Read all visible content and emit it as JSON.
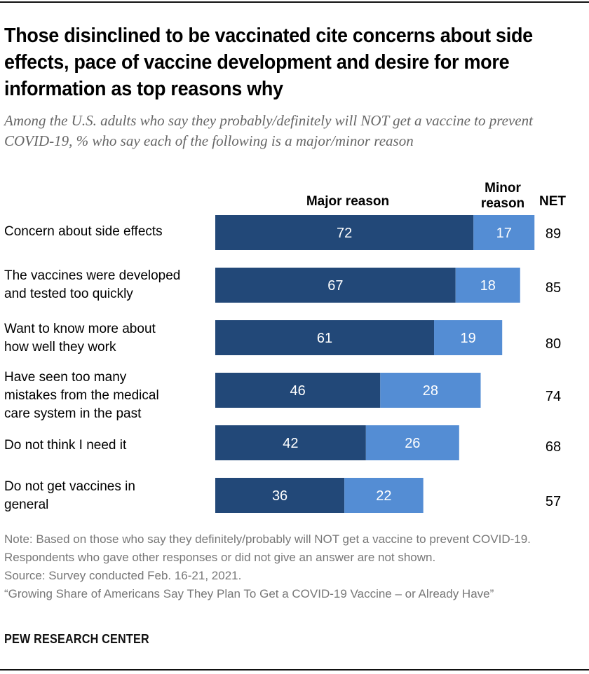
{
  "title": "Those disinclined to be vaccinated cite concerns about side effects, pace of vaccine development and desire for more information as top reasons why",
  "subtitle": "Among the U.S. adults who say they probably/definitely will NOT get a vaccine to prevent COVID-19, % who say each of the following is a major/minor reason",
  "column_headers": {
    "major": "Major reason",
    "minor_line1": "Minor",
    "minor_line2": "reason",
    "net": "NET"
  },
  "chart_data": {
    "type": "bar",
    "orientation": "horizontal",
    "stacked": true,
    "title": "Those disinclined to be vaccinated cite concerns about side effects, pace of vaccine development and desire for more information as top reasons why",
    "subtitle": "Among the U.S. adults who say they probably/definitely will NOT get a vaccine to prevent COVID-19, % who say each of the following is a major/minor reason",
    "categories": [
      "Concern about side effects",
      "The vaccines were developed and tested too quickly",
      "Want to know more about how well they work",
      "Have seen too many mistakes from the medical care system in the past",
      "Do not think I need it",
      "Do not get vaccines in general"
    ],
    "category_lines": [
      [
        "Concern about side effects"
      ],
      [
        "The vaccines were developed",
        "and tested too quickly"
      ],
      [
        "Want to know more about",
        "how well they work"
      ],
      [
        "Have seen too many",
        "mistakes from the medical",
        "care system in the past"
      ],
      [
        "Do not think I need it"
      ],
      [
        "Do not get vaccines in",
        "general"
      ]
    ],
    "series": [
      {
        "name": "Major reason",
        "color": "#224878",
        "values": [
          72,
          67,
          61,
          46,
          42,
          36
        ]
      },
      {
        "name": "Minor reason",
        "color": "#548DD4",
        "values": [
          17,
          18,
          19,
          28,
          26,
          22
        ]
      }
    ],
    "net": {
      "name": "NET",
      "values": [
        89,
        85,
        80,
        74,
        68,
        57
      ]
    },
    "xlim": [
      0,
      100
    ],
    "xlabel": "",
    "ylabel": "",
    "grid": false,
    "legend": "top (column headers)"
  },
  "note": "Note: Based on those who say they definitely/probably will NOT get a vaccine to prevent COVID-19. Respondents who gave other responses or did not give an answer are not shown.",
  "source": "Source: Survey conducted Feb. 16-21, 2021.",
  "report_title": "“Growing Share of Americans Say They Plan To Get a COVID-19 Vaccine – or Already Have”",
  "brand": "PEW RESEARCH CENTER"
}
